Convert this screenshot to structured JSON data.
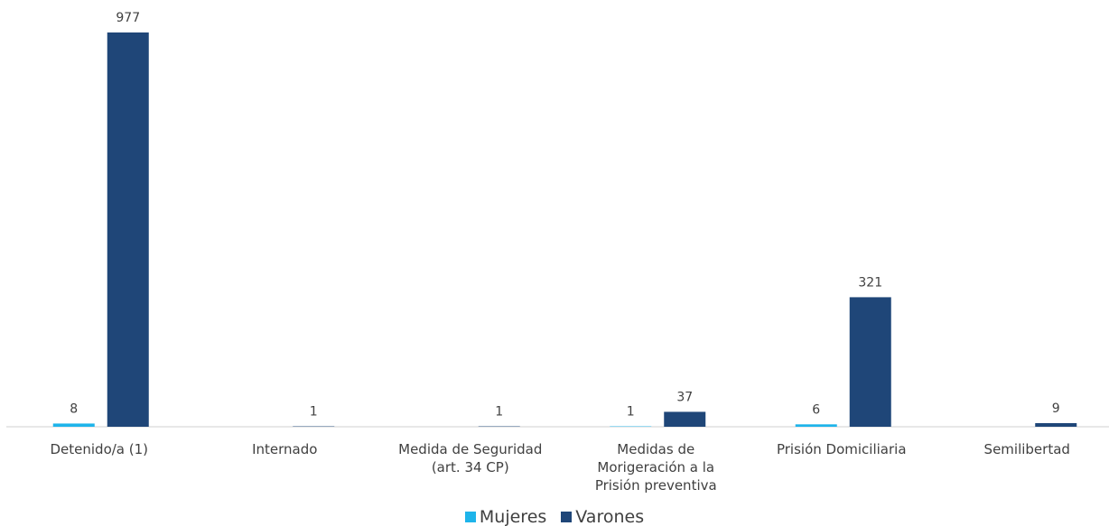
{
  "chart_data": {
    "type": "bar",
    "categories": [
      "Detenido/a (1)",
      "Internado",
      "Medida de Seguridad (art. 34 CP)",
      "Medidas de Morigeración a la Prisión preventiva",
      "Prisión Domiciliaria",
      "Semilibertad"
    ],
    "series": [
      {
        "name": "Mujeres",
        "color": "#1eb4ea",
        "values": [
          8,
          null,
          null,
          1,
          6,
          null
        ]
      },
      {
        "name": "Varones",
        "color": "#1f4678",
        "values": [
          977,
          1,
          1,
          37,
          321,
          9
        ]
      }
    ],
    "legend": "bottom"
  }
}
